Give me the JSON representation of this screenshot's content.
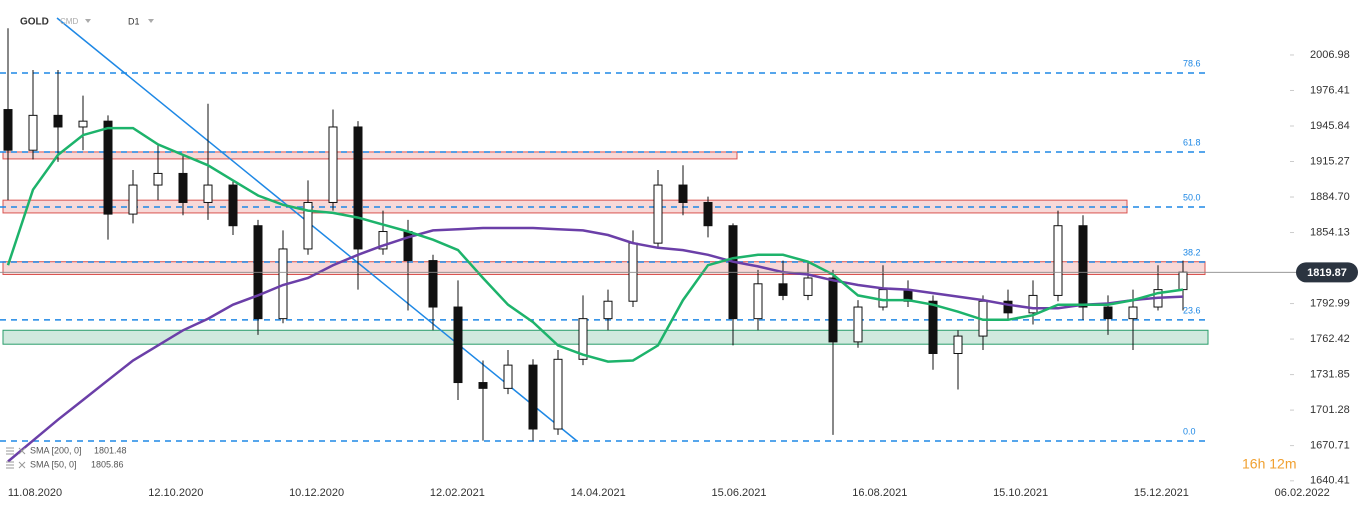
{
  "chart_data": {
    "type": "candlestick",
    "symbol": "GOLD",
    "market": "CMD",
    "interval": "D1",
    "countdown": "16h 12m",
    "last_price": 1819.87,
    "ylim": [
      1632.5,
      2054.3
    ],
    "yticks": [
      1640.41,
      1670.71,
      1701.28,
      1731.85,
      1762.42,
      1792.99,
      1854.13,
      {
        "value": 1884.7,
        "label": "1884.70"
      },
      1915.27,
      1945.84,
      1976.41,
      2006.98
    ],
    "x_labels": [
      "11.08.2020",
      "12.10.2020",
      "10.12.2020",
      "12.02.2021",
      "14.04.2021",
      "15.06.2021",
      "16.08.2021",
      "15.10.2021",
      "15.12.2021",
      "06.02.2022"
    ],
    "open": [
      1960,
      1925,
      1955,
      1945,
      1950,
      1870,
      1895,
      1905,
      1880,
      1895,
      1860,
      1780,
      1840,
      1880,
      1945,
      1840,
      1855,
      1830,
      1790,
      1725,
      1720,
      1740,
      1685,
      1745,
      1780,
      1795,
      1845,
      1895,
      1880,
      1860,
      1780,
      1810,
      1800,
      1815,
      1760,
      1790,
      1805,
      1795,
      1750,
      1765,
      1795,
      1785,
      1800,
      1860,
      1790,
      1780,
      1790,
      1805
    ],
    "high": [
      2030,
      1994,
      1994,
      1972,
      1955,
      1908,
      1930,
      1921,
      1965,
      1898,
      1865,
      1856,
      1899,
      1960,
      1950,
      1873,
      1865,
      1835,
      1813,
      1744,
      1753,
      1745,
      1753,
      1800,
      1805,
      1856,
      1908,
      1912,
      1885,
      1862,
      1822,
      1830,
      1830,
      1822,
      1796,
      1826,
      1813,
      1800,
      1770,
      1800,
      1805,
      1813,
      1873,
      1869,
      1800,
      1805,
      1826,
      1830
    ],
    "low": [
      1882,
      1917,
      1915,
      1925,
      1848,
      1862,
      1882,
      1869,
      1865,
      1852,
      1766,
      1776,
      1835,
      1873,
      1805,
      1835,
      1787,
      1770,
      1710,
      1675,
      1715,
      1675,
      1680,
      1740,
      1770,
      1790,
      1840,
      1869,
      1850,
      1757,
      1770,
      1796,
      1796,
      1680,
      1755,
      1787,
      1790,
      1736,
      1719,
      1753,
      1779,
      1775,
      1795,
      1779,
      1766,
      1753,
      1787,
      1787
    ],
    "close": [
      1925,
      1955,
      1945,
      1950,
      1870,
      1895,
      1905,
      1880,
      1895,
      1860,
      1780,
      1840,
      1880,
      1945,
      1840,
      1855,
      1830,
      1790,
      1725,
      1720,
      1740,
      1685,
      1745,
      1780,
      1795,
      1845,
      1895,
      1880,
      1860,
      1780,
      1810,
      1800,
      1815,
      1760,
      1790,
      1805,
      1795,
      1750,
      1765,
      1795,
      1785,
      1800,
      1860,
      1790,
      1780,
      1790,
      1805,
      1820
    ],
    "series": [
      {
        "name": "SMA [200, 0]",
        "color": "#6b3fa8",
        "last": 1801.48,
        "values": [
          1657,
          1675,
          1693,
          1710,
          1727,
          1744,
          1757,
          1770,
          1780,
          1792,
          1800,
          1809,
          1815,
          1826,
          1835,
          1843,
          1850,
          1856,
          1857,
          1858,
          1858,
          1858,
          1857,
          1856,
          1852,
          1845,
          1841,
          1839,
          1835,
          1829,
          1825,
          1820,
          1818,
          1813,
          1809,
          1806,
          1805,
          1802,
          1799,
          1796,
          1792,
          1789,
          1789,
          1792,
          1793,
          1796,
          1798,
          1799
        ]
      },
      {
        "name": "SMA [50, 0]",
        "color": "#1db36b",
        "last": 1805.86,
        "values": [
          1826,
          1891,
          1921,
          1938,
          1944,
          1944,
          1930,
          1921,
          1912,
          1899,
          1886,
          1878,
          1873,
          1871,
          1867,
          1861,
          1855,
          1848,
          1839,
          1815,
          1792,
          1777,
          1757,
          1749,
          1743,
          1744,
          1757,
          1796,
          1826,
          1832,
          1835,
          1835,
          1829,
          1818,
          1800,
          1796,
          1796,
          1792,
          1786,
          1779,
          1779,
          1783,
          1792,
          1792,
          1792,
          1796,
          1802,
          1805
        ]
      }
    ],
    "fib_levels": [
      {
        "label": "78.6",
        "price": 1991.5
      },
      {
        "label": "61.8",
        "price": 1923.5
      },
      {
        "label": "50.0",
        "price": 1876.1
      },
      {
        "label": "38.2",
        "price": 1828.8
      },
      {
        "label": "23.6",
        "price": 1778.9
      },
      {
        "label": "0.0",
        "price": 1674.7
      }
    ],
    "zones": [
      {
        "top": 1923.5,
        "bottom": 1917.5,
        "color": "#d9534f"
      },
      {
        "top": 1882,
        "bottom": 1871,
        "color": "#d9534f"
      },
      {
        "top": 1829,
        "bottom": 1818,
        "color": "#d9534f"
      },
      {
        "top": 1770,
        "bottom": 1758,
        "color": "#2a9d6b"
      }
    ]
  }
}
